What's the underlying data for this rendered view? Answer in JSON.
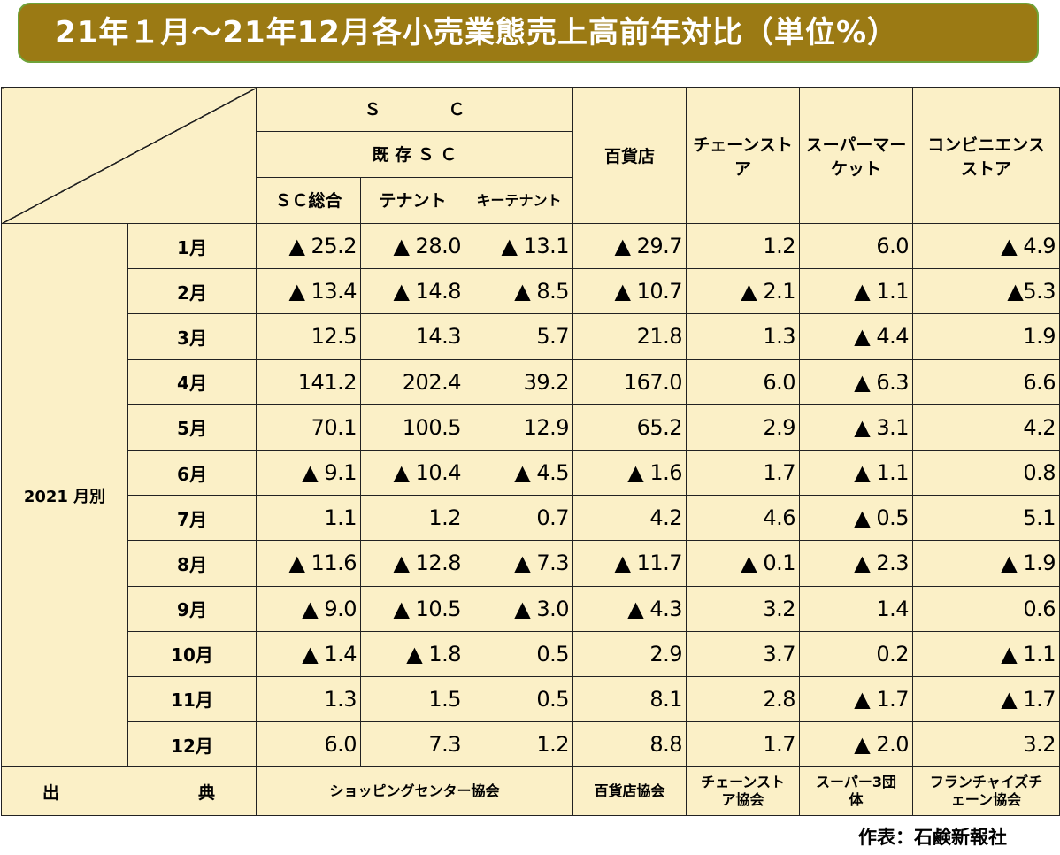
{
  "title": "21年１月～21年12月各小売業態売上高前年対比（単位%）",
  "headers": {
    "sc": "Ｓ　　　　Ｃ",
    "existing_sc": "既 存 Ｓ Ｃ",
    "sc_total": "ＳＣ総合",
    "tenant": "テナント",
    "key_tenant": "キーテナント",
    "department_store": "百貨店",
    "chain_store": "チェーンストア",
    "supermarket": "スーパーマーケット",
    "convenience_store": "コンビニエンスストア"
  },
  "group_label": "2021 月別",
  "rows": [
    {
      "month": "1月",
      "values": [
        "▲ 25.2",
        "▲ 28.0",
        "▲ 13.1",
        "▲ 29.7",
        "1.2",
        "6.0",
        "▲ 4.9"
      ]
    },
    {
      "month": "2月",
      "values": [
        "▲ 13.4",
        "▲ 14.8",
        "▲ 8.5",
        "▲ 10.7",
        "▲ 2.1",
        "▲ 1.1",
        "▲5.3"
      ]
    },
    {
      "month": "3月",
      "values": [
        "12.5",
        "14.3",
        "5.7",
        "21.8",
        "1.3",
        "▲ 4.4",
        "1.9"
      ]
    },
    {
      "month": "4月",
      "values": [
        "141.2",
        "202.4",
        "39.2",
        "167.0",
        "6.0",
        "▲ 6.3",
        "6.6"
      ]
    },
    {
      "month": "5月",
      "values": [
        "70.1",
        "100.5",
        "12.9",
        "65.2",
        "2.9",
        "▲ 3.1",
        "4.2"
      ]
    },
    {
      "month": "6月",
      "values": [
        "▲ 9.1",
        "▲ 10.4",
        "▲ 4.5",
        "▲ 1.6",
        "1.7",
        "▲ 1.1",
        "0.8"
      ]
    },
    {
      "month": "7月",
      "values": [
        "1.1",
        "1.2",
        "0.7",
        "4.2",
        "4.6",
        "▲ 0.5",
        "5.1"
      ]
    },
    {
      "month": "8月",
      "values": [
        "▲ 11.6",
        "▲ 12.8",
        "▲ 7.3",
        "▲ 11.7",
        "▲ 0.1",
        "▲ 2.3",
        "▲ 1.9"
      ]
    },
    {
      "month": "9月",
      "values": [
        "▲ 9.0",
        "▲ 10.5",
        "▲ 3.0",
        "▲ 4.3",
        "3.2",
        "1.4",
        "0.6"
      ]
    },
    {
      "month": "10月",
      "values": [
        "▲ 1.4",
        "▲ 1.8",
        "0.5",
        "2.9",
        "3.7",
        "0.2",
        "▲ 1.1"
      ]
    },
    {
      "month": "11月",
      "values": [
        "1.3",
        "1.5",
        "0.5",
        "8.1",
        "2.8",
        "▲ 1.7",
        "▲ 1.7"
      ]
    },
    {
      "month": "12月",
      "values": [
        "6.0",
        "7.3",
        "1.2",
        "8.8",
        "1.7",
        "▲ 2.0",
        "3.2"
      ]
    }
  ],
  "source_row": {
    "label_left": "出",
    "label_right": "典",
    "sc_source": "ショッピングセンター協会",
    "department_store_source": "百貨店協会",
    "chain_store_source": "チェーンストア協会",
    "supermarket_source": "スーパー3団体",
    "convenience_source": "フランチャイズチェーン協会"
  },
  "credit": "作表：石鹸新報社",
  "colors": {
    "title_bg": "#9b7a14",
    "title_border": "#6fa339",
    "table_bg": "#fbf0c7"
  }
}
